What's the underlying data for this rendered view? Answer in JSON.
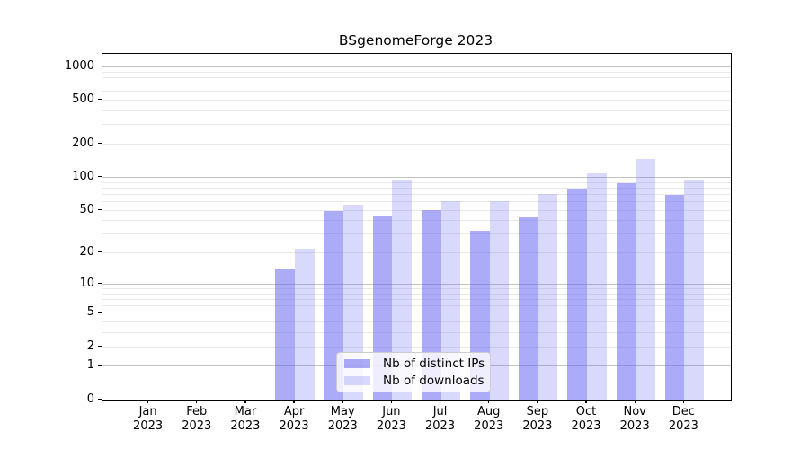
{
  "title": "BSgenomeForge 2023",
  "colors": {
    "distinct_ips_bar": "rgba(102,102,240,0.55)",
    "downloads_bar": "rgba(102,102,240,0.25)",
    "major_gridline": "#c2c2c2",
    "minor_gridline": "#e9e9e9",
    "axis": "#000000"
  },
  "legend": {
    "position": "bottom-center-inside"
  },
  "chart_data": {
    "type": "bar",
    "title": "BSgenomeForge 2023",
    "x": {
      "months": [
        "Jan",
        "Feb",
        "Mar",
        "Apr",
        "May",
        "Jun",
        "Jul",
        "Aug",
        "Sep",
        "Oct",
        "Nov",
        "Dec"
      ],
      "year": "2023"
    },
    "categories": [
      "Jan 2023",
      "Feb 2023",
      "Mar 2023",
      "Apr 2023",
      "May 2023",
      "Jun 2023",
      "Jul 2023",
      "Aug 2023",
      "Sep 2023",
      "Oct 2023",
      "Nov 2023",
      "Dec 2023"
    ],
    "series": [
      {
        "name": "Nb of distinct IPs",
        "values": [
          0,
          0,
          0,
          14,
          49,
          45,
          50,
          32,
          43,
          78,
          89,
          69
        ]
      },
      {
        "name": "Nb of downloads",
        "values": [
          0,
          0,
          0,
          22,
          56,
          94,
          60,
          61,
          70,
          108,
          146,
          94
        ]
      }
    ],
    "yscale": "log1p",
    "y_ticks": [
      0,
      1,
      2,
      5,
      10,
      20,
      50,
      100,
      200,
      500,
      1000
    ],
    "ylim": [
      0,
      1310
    ],
    "xlabel": "",
    "ylabel": "",
    "grid": true,
    "legend_position": "bottom-center-inside"
  }
}
